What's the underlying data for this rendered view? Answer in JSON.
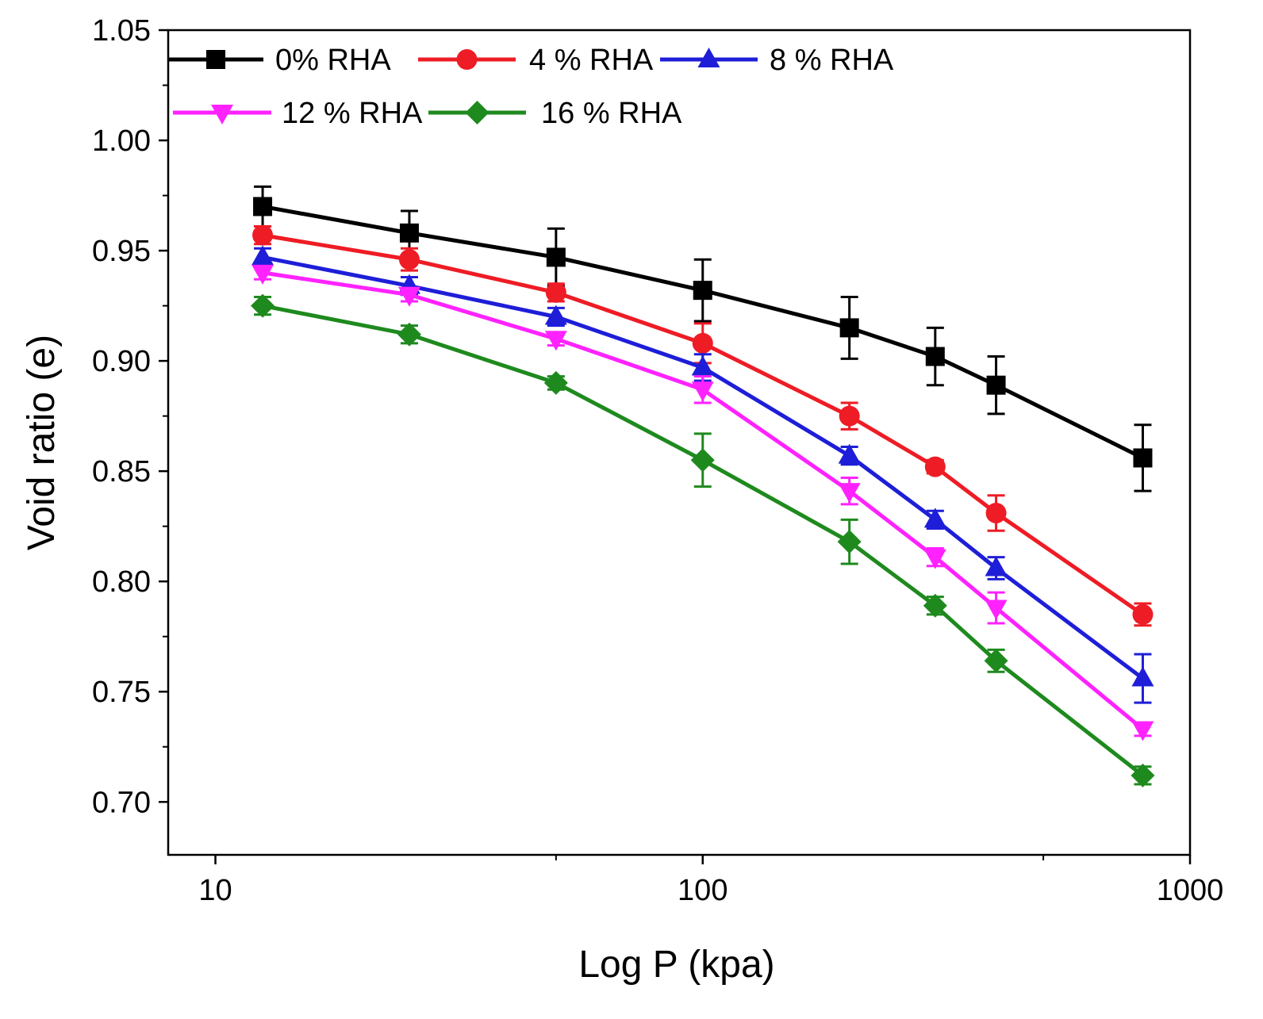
{
  "chart_data": {
    "type": "line",
    "xlabel": "Log P (kpa)",
    "ylabel": "Void ratio (e)",
    "x_scale": "log",
    "xlim": [
      8,
      1000
    ],
    "ylim": [
      0.676,
      1.05
    ],
    "x_ticks": [
      10,
      100,
      1000
    ],
    "x_tick_labels": [
      "10",
      "100",
      "1000"
    ],
    "y_ticks": [
      0.7,
      0.75,
      0.8,
      0.85,
      0.9,
      0.95,
      1.0,
      1.05
    ],
    "y_tick_labels": [
      "0.70",
      "0.75",
      "0.80",
      "0.85",
      "0.90",
      "0.95",
      "1.00",
      "1.05"
    ],
    "legend_position": "top-left",
    "x": [
      12.5,
      25,
      50,
      100,
      200,
      300,
      400,
      800
    ],
    "series": [
      {
        "name": "0% RHA",
        "color": "#000000",
        "marker": "square",
        "values": [
          0.97,
          0.958,
          0.947,
          0.932,
          0.915,
          0.902,
          0.889,
          0.856
        ],
        "errors": [
          0.009,
          0.01,
          0.013,
          0.014,
          0.014,
          0.013,
          0.013,
          0.015
        ]
      },
      {
        "name": "4 % RHA",
        "color": "#ee1c25",
        "marker": "circle",
        "values": [
          0.957,
          0.946,
          0.931,
          0.908,
          0.875,
          0.852,
          0.831,
          0.785
        ],
        "errors": [
          0.004,
          0.005,
          0.004,
          0.009,
          0.006,
          0.003,
          0.008,
          0.005
        ]
      },
      {
        "name": "8 % RHA",
        "color": "#1e1ed8",
        "marker": "triangle-up",
        "values": [
          0.947,
          0.934,
          0.92,
          0.897,
          0.857,
          0.828,
          0.806,
          0.756
        ],
        "errors": [
          0.004,
          0.004,
          0.004,
          0.006,
          0.004,
          0.004,
          0.005,
          0.011
        ]
      },
      {
        "name": "12 % RHA",
        "color": "#ff22ff",
        "marker": "triangle-down",
        "values": [
          0.94,
          0.93,
          0.91,
          0.887,
          0.841,
          0.811,
          0.788,
          0.733
        ],
        "errors": [
          0.003,
          0.003,
          0.003,
          0.006,
          0.006,
          0.004,
          0.007,
          0.003
        ]
      },
      {
        "name": "16 % RHA",
        "color": "#1e8a1e",
        "marker": "diamond",
        "values": [
          0.925,
          0.912,
          0.89,
          0.855,
          0.818,
          0.789,
          0.764,
          0.712
        ],
        "errors": [
          0.004,
          0.004,
          0.003,
          0.012,
          0.01,
          0.004,
          0.005,
          0.004
        ]
      }
    ]
  }
}
